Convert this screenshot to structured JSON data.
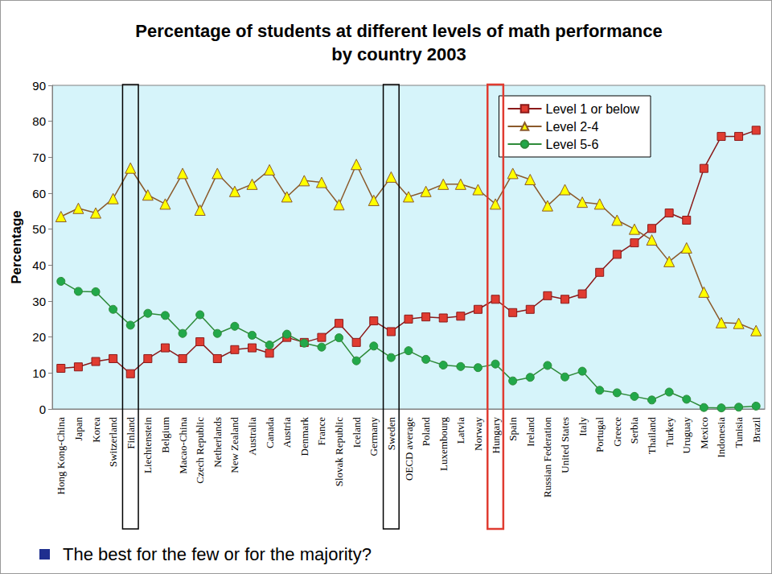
{
  "chart_data": {
    "type": "line",
    "title": "Percentage of students at different levels of math performance\nby country 2003",
    "y_label": "Percentage",
    "note": "The best for the few or for the majority?",
    "categories": [
      "Hong Kong-China",
      "Japan",
      "Korea",
      "Switzerland",
      "Finland",
      "Liechtenstein",
      "Belgium",
      "Macao-China",
      "Czech Republic",
      "Netherlands",
      "New Zealand",
      "Australia",
      "Canada",
      "Austria",
      "Denmark",
      "France",
      "Slovak Republic",
      "Iceland",
      "Germany",
      "Sweden",
      "OECD average",
      "Poland",
      "Luxembourg",
      "Latvia",
      "Norway",
      "Hungary",
      "Spain",
      "Ireland",
      "Russian Federation",
      "United States",
      "Italy",
      "Portugal",
      "Greece",
      "Serbia",
      "Thailand",
      "Turkey",
      "Uruguay",
      "Mexico",
      "Indonesia",
      "Tunisia",
      "Brazil"
    ],
    "series": [
      {
        "name": "Level 1 or below",
        "color": "#e03c31",
        "marker": "square",
        "values": [
          11.3,
          11.7,
          13.2,
          14.0,
          9.8,
          14.0,
          17.0,
          14.0,
          18.7,
          14.0,
          16.5,
          17.0,
          15.5,
          19.9,
          18.5,
          19.9,
          23.8,
          18.5,
          24.5,
          21.5,
          25.0,
          25.6,
          25.3,
          25.8,
          27.7,
          30.5,
          26.8,
          27.7,
          31.5,
          30.5,
          32.0,
          38.0,
          43.0,
          46.2,
          50.2,
          54.5,
          52.5,
          66.9,
          75.8,
          75.8,
          77.5
        ]
      },
      {
        "name": "Level 2-4",
        "color": "#ffff00",
        "marker": "triangle",
        "values": [
          53.5,
          55.8,
          54.5,
          58.5,
          67.0,
          59.5,
          57.0,
          65.5,
          55.3,
          65.5,
          60.5,
          62.5,
          66.5,
          59.0,
          63.5,
          63.0,
          56.8,
          68.0,
          58.0,
          64.5,
          59.0,
          60.5,
          62.5,
          62.5,
          61.0,
          57.0,
          65.5,
          63.8,
          56.5,
          61.0,
          57.5,
          57.0,
          52.5,
          50.0,
          47.0,
          41.0,
          44.8,
          32.5,
          24.0,
          23.8,
          21.8
        ]
      },
      {
        "name": "Level 5-6",
        "color": "#22a84a",
        "marker": "circle",
        "values": [
          35.5,
          32.7,
          32.6,
          27.7,
          23.3,
          26.6,
          26.0,
          21.0,
          26.2,
          21.0,
          23.0,
          20.5,
          17.8,
          20.8,
          18.3,
          17.2,
          19.8,
          13.4,
          17.5,
          14.3,
          16.2,
          13.8,
          12.2,
          11.8,
          11.5,
          12.5,
          7.8,
          8.8,
          12.1,
          8.9,
          10.5,
          5.2,
          4.5,
          3.5,
          2.5,
          4.7,
          2.7,
          0.4,
          0.3,
          0.5,
          0.8
        ]
      }
    ],
    "highlights": [
      {
        "category": "Finland",
        "color": "#000000"
      },
      {
        "category": "Sweden",
        "color": "#000000"
      },
      {
        "category": "Hungary",
        "color": "#e03c31"
      }
    ],
    "ylim": [
      0,
      90
    ],
    "yticks": [
      0,
      10,
      20,
      30,
      40,
      50,
      60,
      70,
      80,
      90
    ],
    "grid": true,
    "legend": "upper right"
  }
}
